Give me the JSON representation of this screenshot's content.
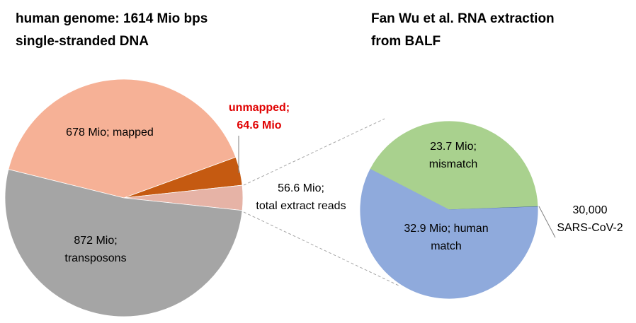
{
  "chart_data": [
    {
      "type": "pie",
      "title": "human genome: 1614 Mio bps",
      "subtitle": "single-stranded DNA",
      "categories": [
        "mapped",
        "unmapped",
        "total extract reads",
        "transposons"
      ],
      "values": [
        678,
        64.6,
        56.6,
        872
      ],
      "value_labels": [
        [
          "678 Mio; mapped"
        ],
        [
          "unmapped;",
          "64.6 Mio"
        ],
        [
          "56.6 Mio;",
          "total extract reads"
        ],
        [
          "872 Mio;",
          "transposons"
        ]
      ],
      "colors": [
        "#f6b196",
        "#c55a11",
        "#e6b3a6",
        "#a5a5a5"
      ]
    },
    {
      "type": "pie",
      "title": "Fan Wu et al. RNA extraction",
      "subtitle": "from BALF",
      "categories": [
        "mismatch",
        "SARS-CoV-2",
        "human match"
      ],
      "values": [
        23.7,
        0.03,
        32.9
      ],
      "value_labels": [
        [
          "23.7 Mio;",
          "mismatch"
        ],
        [
          "30,000",
          "SARS-CoV-2"
        ],
        [
          "32.9 Mio; human",
          "match"
        ]
      ],
      "colors": [
        "#a9d18e",
        "#2f5597",
        "#8faadc"
      ]
    }
  ]
}
